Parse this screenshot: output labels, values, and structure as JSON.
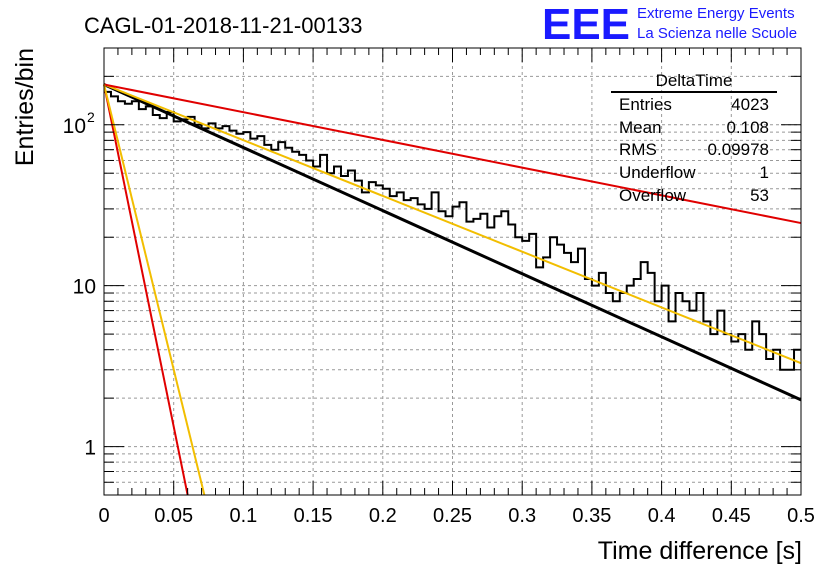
{
  "header": {
    "run_title": "CAGL-01-2018-11-21-00133",
    "logo_text": "EEE",
    "logo_line1": "Extreme Energy Events",
    "logo_line2": "La Scienza nelle Scuole",
    "logo_color": "#1a1aff"
  },
  "stats_box": {
    "title": "DeltaTime",
    "rows": [
      {
        "label": "Entries",
        "value": "4023"
      },
      {
        "label": "Mean",
        "value": "0.108"
      },
      {
        "label": "RMS",
        "value": "0.09978"
      },
      {
        "label": "Underflow",
        "value": "1"
      },
      {
        "label": "Overflow",
        "value": "53"
      }
    ]
  },
  "chart_data": {
    "type": "histogram",
    "xlabel": "Time difference [s]",
    "ylabel": "Entries/bin",
    "xlim": [
      0,
      0.5
    ],
    "ylim": [
      0.5,
      300
    ],
    "y_scale": "log",
    "grid": true,
    "x_ticks": [
      "0",
      "0.05",
      "0.1",
      "0.15",
      "0.2",
      "0.25",
      "0.3",
      "0.35",
      "0.4",
      "0.45",
      "0.5"
    ],
    "y_ticks": [
      {
        "value": 1,
        "label": "1"
      },
      {
        "value": 10,
        "label": "10"
      },
      {
        "value": 100,
        "label": "10",
        "exponent": "2"
      }
    ],
    "histogram": {
      "bin_width": 0.005,
      "color": "#000000",
      "values": [
        160,
        150,
        140,
        135,
        140,
        125,
        130,
        115,
        110,
        120,
        105,
        108,
        112,
        100,
        95,
        102,
        95,
        98,
        92,
        88,
        90,
        82,
        85,
        75,
        70,
        78,
        72,
        68,
        65,
        60,
        55,
        65,
        50,
        55,
        48,
        52,
        45,
        38,
        44,
        42,
        40,
        36,
        38,
        34,
        35,
        32,
        30,
        38,
        29,
        27,
        31,
        33,
        25,
        26,
        28,
        23,
        27,
        29,
        24,
        20,
        19,
        21,
        13,
        15,
        20,
        18,
        16,
        14,
        17,
        11,
        10,
        12,
        9,
        8,
        9,
        10,
        11,
        14,
        12,
        8,
        10,
        6,
        9,
        8,
        7,
        9,
        6,
        5,
        7,
        5,
        4.5,
        5,
        4,
        6,
        5,
        3.5,
        4,
        3,
        3,
        4
      ]
    },
    "fits": [
      {
        "color": "#000000",
        "x": [
          0,
          0.5
        ],
        "y": [
          178,
          1.95
        ]
      },
      {
        "color": "#f2be00",
        "x": [
          0,
          0.5
        ],
        "y": [
          178,
          3.3
        ]
      },
      {
        "color": "#e00000",
        "x": [
          0,
          0.5
        ],
        "y": [
          178,
          24.5
        ]
      },
      {
        "color": "#e00000",
        "x": [
          0,
          0.06
        ],
        "y": [
          178,
          0.5
        ]
      },
      {
        "color": "#f2be00",
        "x": [
          0,
          0.072
        ],
        "y": [
          178,
          0.5
        ]
      }
    ]
  }
}
